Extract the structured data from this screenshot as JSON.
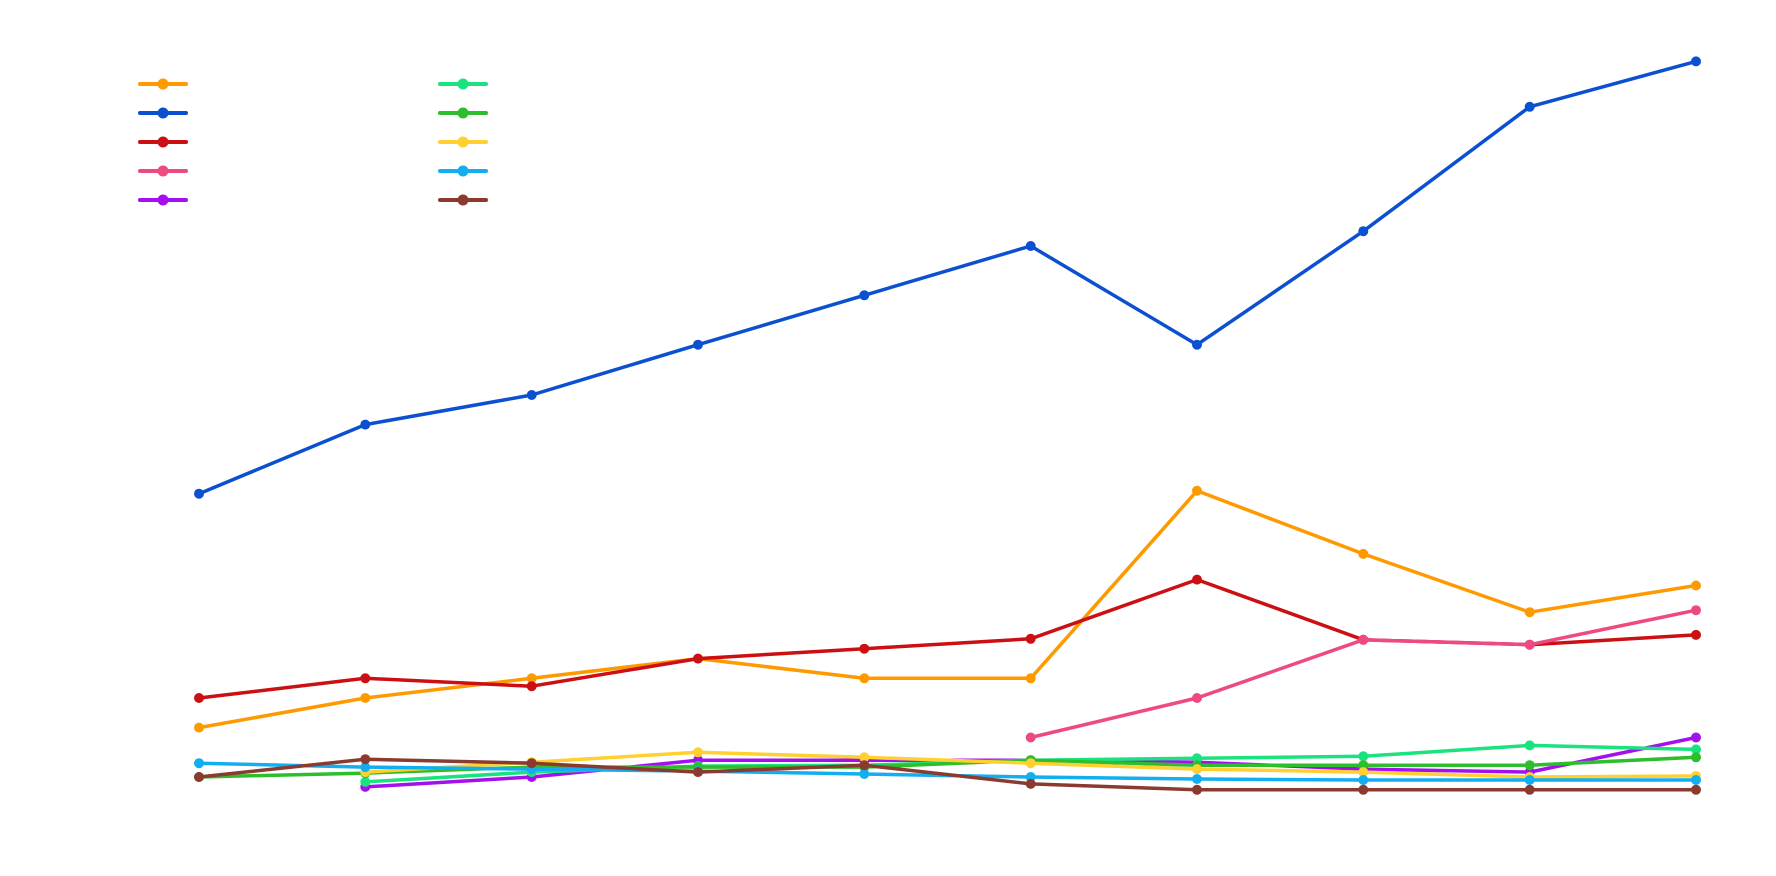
{
  "chart_data": {
    "type": "line",
    "title": "",
    "xlabel": "",
    "ylabel": "",
    "grid": false,
    "legend_position": "top-left",
    "x": [
      1,
      2,
      3,
      4,
      5,
      6,
      7,
      8,
      9,
      10
    ],
    "ylim": [
      0,
      100
    ],
    "series": [
      {
        "name": "",
        "color": "#FF9900",
        "values": [
          5.0,
          8.0,
          10.0,
          12.0,
          10.0,
          10.0,
          29.0,
          22.6,
          16.7,
          19.4
        ]
      },
      {
        "name": "",
        "color": "#0B50D0",
        "values": [
          28.7,
          35.7,
          38.7,
          43.8,
          48.8,
          53.8,
          43.8,
          55.3,
          67.9,
          72.5
        ]
      },
      {
        "name": "",
        "color": "#CC0F13",
        "values": [
          8.0,
          10.0,
          9.2,
          12.0,
          13.0,
          14.0,
          20.0,
          13.9,
          13.4,
          14.4
        ]
      },
      {
        "name": "",
        "color": "#EE4A82",
        "values": [
          null,
          null,
          null,
          null,
          null,
          4.0,
          8.0,
          13.9,
          13.4,
          16.9
        ]
      },
      {
        "name": "",
        "color": "#A30FEF",
        "values": [
          null,
          -1.0,
          0.0,
          1.7,
          1.7,
          1.7,
          1.5,
          0.8,
          0.5,
          4.0
        ]
      },
      {
        "name": "",
        "color": "#1AE27E",
        "values": [
          null,
          -0.5,
          0.5,
          1.1,
          1.2,
          1.7,
          1.9,
          2.1,
          3.2,
          2.8
        ]
      },
      {
        "name": "",
        "color": "#2DBD2D",
        "values": [
          0.0,
          0.4,
          1.0,
          1.0,
          1.0,
          1.7,
          1.2,
          1.2,
          1.2,
          2.0
        ]
      },
      {
        "name": "",
        "color": "#FFD030",
        "values": [
          null,
          0.5,
          1.5,
          2.5,
          2.0,
          1.4,
          0.8,
          0.5,
          0.0,
          0.1
        ]
      },
      {
        "name": "",
        "color": "#12AEF0",
        "values": [
          1.4,
          1.0,
          0.8,
          0.6,
          0.3,
          0.0,
          -0.2,
          -0.3,
          -0.3,
          -0.3
        ]
      },
      {
        "name": "",
        "color": "#8A3A2E",
        "values": [
          0.0,
          1.8,
          1.4,
          0.5,
          1.2,
          -0.7,
          -1.3,
          -1.3,
          -1.3,
          -1.3
        ]
      }
    ]
  }
}
